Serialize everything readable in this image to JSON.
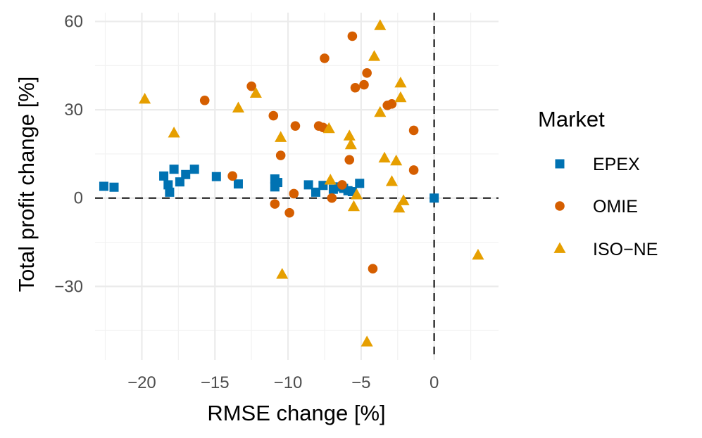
{
  "chart_data": {
    "type": "scatter",
    "xlabel": "RMSE change [%]",
    "ylabel": "Total profit change [%]",
    "xlim": [
      -23.2,
      4.4
    ],
    "ylim": [
      -55,
      63
    ],
    "x_ticks": [
      -20,
      -15,
      -10,
      -5,
      0
    ],
    "x_tick_labels": [
      "−20",
      "−15",
      "−10",
      "−5",
      "0"
    ],
    "y_ticks": [
      -30,
      0,
      30,
      60
    ],
    "y_tick_labels": [
      "−30",
      "0",
      "30",
      "60"
    ],
    "reference_lines": {
      "x": 0,
      "y": 0
    },
    "grid": true,
    "legend": {
      "title": "Market",
      "position": "right"
    },
    "series": [
      {
        "name": "EPEX",
        "marker": "square",
        "color": "#0072B2",
        "points": [
          [
            -22.6,
            4.0
          ],
          [
            -21.9,
            3.7
          ],
          [
            -18.5,
            7.5
          ],
          [
            -18.2,
            4.5
          ],
          [
            -18.1,
            2.0
          ],
          [
            -17.8,
            9.8
          ],
          [
            -17.4,
            5.5
          ],
          [
            -17.0,
            8.0
          ],
          [
            -16.4,
            9.8
          ],
          [
            -14.9,
            7.3
          ],
          [
            -13.4,
            4.8
          ],
          [
            -10.9,
            6.5
          ],
          [
            -10.9,
            3.8
          ],
          [
            -10.7,
            5.3
          ],
          [
            -8.6,
            4.5
          ],
          [
            -8.1,
            2.0
          ],
          [
            -7.6,
            4.3
          ],
          [
            -6.9,
            3.0
          ],
          [
            -6.5,
            3.8
          ],
          [
            -6.2,
            3.3
          ],
          [
            -5.9,
            2.5
          ],
          [
            -5.6,
            2.2
          ],
          [
            -5.1,
            5.0
          ],
          [
            0.0,
            0.0
          ]
        ]
      },
      {
        "name": "OMIE",
        "marker": "circle",
        "color": "#D55E00",
        "points": [
          [
            -15.7,
            33.2
          ],
          [
            -13.8,
            7.5
          ],
          [
            -12.5,
            38.0
          ],
          [
            -11.0,
            28.0
          ],
          [
            -10.9,
            -2.0
          ],
          [
            -10.5,
            14.5
          ],
          [
            -9.9,
            -5.0
          ],
          [
            -9.6,
            1.5
          ],
          [
            -9.5,
            24.5
          ],
          [
            -7.9,
            24.5
          ],
          [
            -7.6,
            24.0
          ],
          [
            -7.5,
            47.5
          ],
          [
            -7.0,
            0.0
          ],
          [
            -6.3,
            4.5
          ],
          [
            -5.8,
            13.0
          ],
          [
            -5.6,
            55.0
          ],
          [
            -5.4,
            37.5
          ],
          [
            -4.8,
            38.5
          ],
          [
            -4.6,
            42.5
          ],
          [
            -4.2,
            -24.0
          ],
          [
            -3.2,
            31.5
          ],
          [
            -2.9,
            32.0
          ],
          [
            -1.4,
            23.0
          ],
          [
            -1.4,
            9.5
          ]
        ]
      },
      {
        "name": "ISO−NE",
        "marker": "triangle",
        "color": "#E69F00",
        "points": [
          [
            -19.8,
            33.5
          ],
          [
            -17.8,
            22.0
          ],
          [
            -13.4,
            30.5
          ],
          [
            -12.2,
            35.5
          ],
          [
            -10.5,
            20.5
          ],
          [
            -10.4,
            -26.0
          ],
          [
            -7.2,
            23.5
          ],
          [
            -7.1,
            6.0
          ],
          [
            -5.8,
            21.0
          ],
          [
            -5.7,
            18.0
          ],
          [
            -5.5,
            -3.0
          ],
          [
            -5.3,
            1.0
          ],
          [
            -4.6,
            -49.0
          ],
          [
            -4.1,
            48.0
          ],
          [
            -3.7,
            58.5
          ],
          [
            -3.7,
            29.0
          ],
          [
            -3.4,
            13.5
          ],
          [
            -2.9,
            5.5
          ],
          [
            -2.6,
            12.5
          ],
          [
            -2.4,
            -3.5
          ],
          [
            -2.3,
            39.0
          ],
          [
            -2.3,
            34.0
          ],
          [
            -2.1,
            -1.0
          ],
          [
            3.0,
            -19.5
          ]
        ]
      }
    ]
  }
}
